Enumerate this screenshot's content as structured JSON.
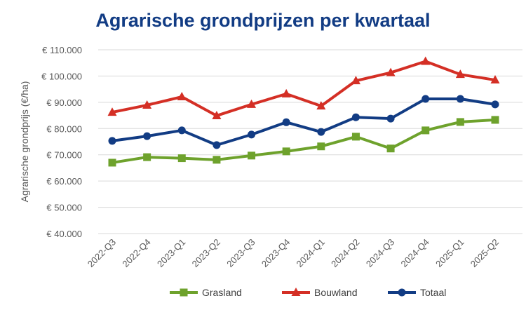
{
  "chart_data": {
    "type": "line",
    "title": "Agrarische grondprijzen per kwartaal",
    "xlabel": "",
    "ylabel": "Agrarische grondprijs (€/ha)",
    "ylim": [
      40000,
      110000
    ],
    "yticks": [
      40000,
      50000,
      60000,
      70000,
      80000,
      90000,
      100000,
      110000
    ],
    "ytick_labels": [
      "€ 40.000",
      "€ 50.000",
      "€ 60.000",
      "€ 70.000",
      "€ 80.000",
      "€ 90.000",
      "€ 100.000",
      "€ 110.000"
    ],
    "grid": true,
    "legend_position": "bottom",
    "categories": [
      "2022-Q3",
      "2022-Q4",
      "2023-Q1",
      "2023-Q2",
      "2023-Q3",
      "2023-Q4",
      "2024-Q1",
      "2024-Q2",
      "2024-Q3",
      "2024-Q4",
      "2025-Q1",
      "2025-Q2"
    ],
    "series": [
      {
        "name": "Grasland",
        "color": "#6ea22c",
        "marker": "square",
        "values": [
          67000,
          69100,
          68700,
          68100,
          69700,
          71300,
          73200,
          76900,
          72400,
          79300,
          82500,
          83300
        ]
      },
      {
        "name": "Bouwland",
        "color": "#d42f25",
        "marker": "triangle",
        "values": [
          86200,
          88900,
          92100,
          84900,
          89200,
          93200,
          88600,
          98200,
          101300,
          105600,
          100600,
          98500
        ]
      },
      {
        "name": "Totaal",
        "color": "#123c84",
        "marker": "circle",
        "values": [
          75300,
          77100,
          79300,
          73700,
          77700,
          82400,
          78700,
          84300,
          83800,
          91300,
          91300,
          89200
        ]
      }
    ]
  }
}
